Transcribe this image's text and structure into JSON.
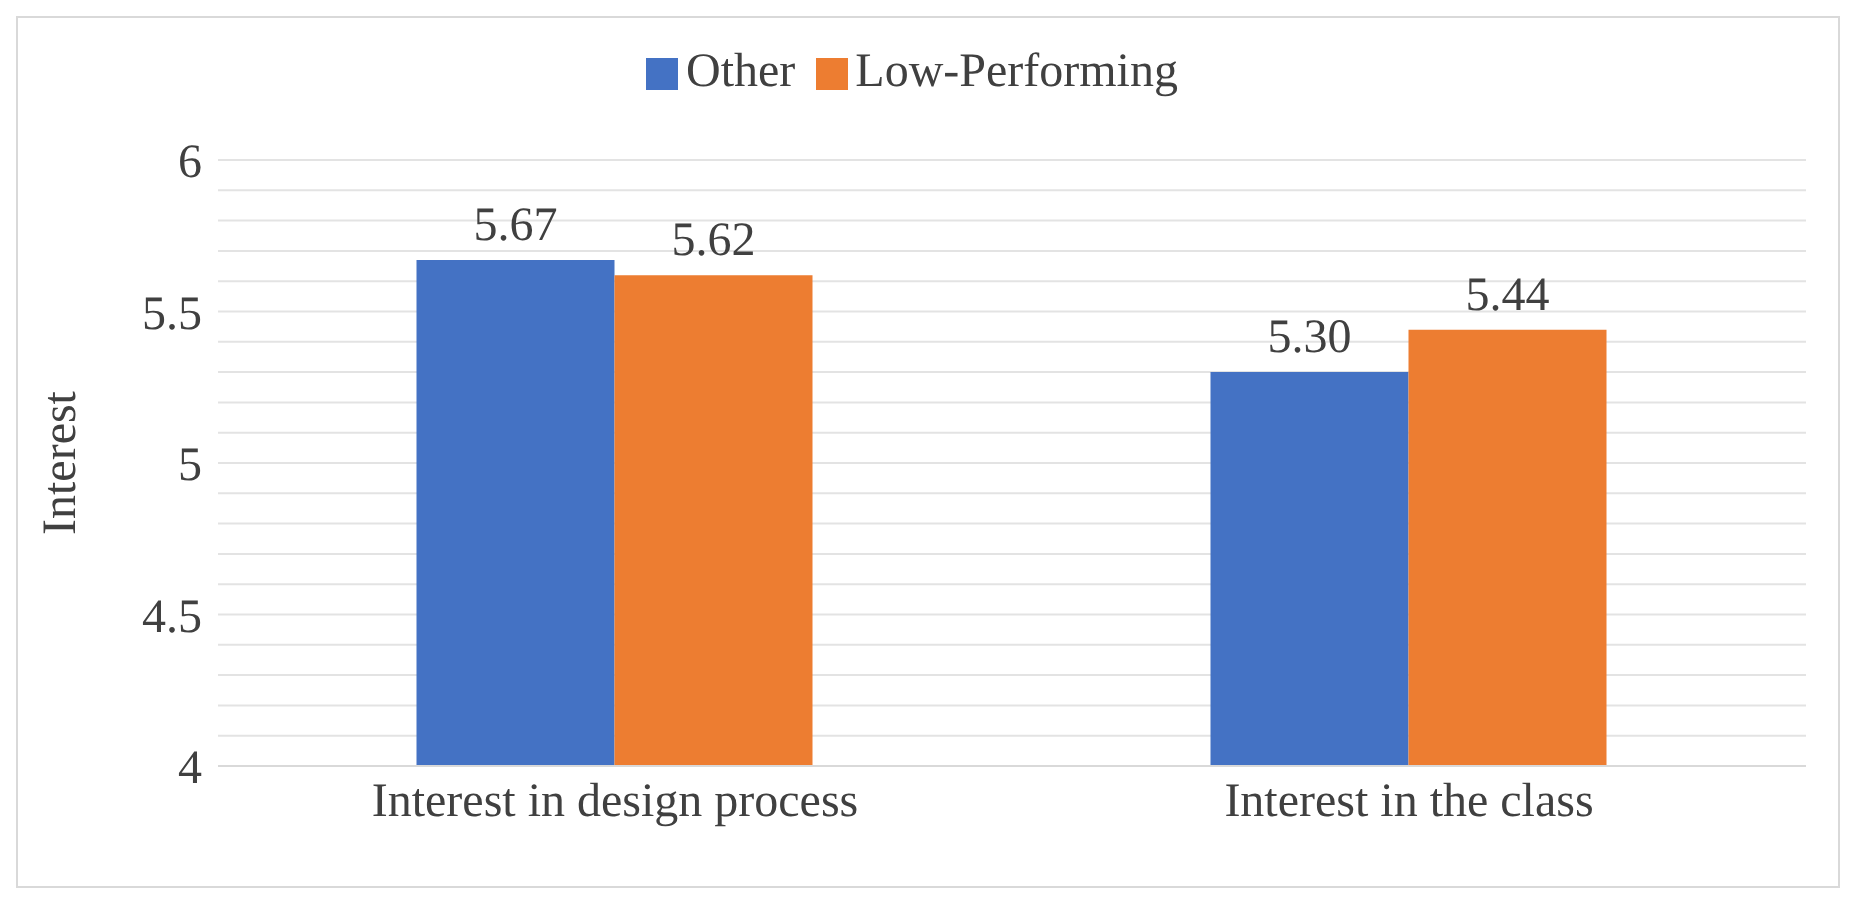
{
  "chart_data": {
    "type": "bar",
    "ylabel": "Interest",
    "categories": [
      "Interest in design process",
      "Interest in the class"
    ],
    "series": [
      {
        "name": "Other",
        "color": "#4472c4",
        "values": [
          5.67,
          5.3
        ]
      },
      {
        "name": "Low-Performing",
        "color": "#ed7d31",
        "values": [
          5.62,
          5.44
        ]
      }
    ],
    "value_labels": [
      [
        "5.67",
        "5.30"
      ],
      [
        "5.62",
        "5.44"
      ]
    ],
    "ylim": [
      4,
      6
    ],
    "yticks": [
      4,
      {
        "value": 4.1,
        "label": null
      },
      {
        "value": 4.2,
        "label": null
      },
      {
        "value": 4.3,
        "label": null
      },
      {
        "value": 4.4,
        "label": null
      },
      4.5,
      {
        "value": 4.6,
        "label": null
      },
      {
        "value": 4.7,
        "label": null
      },
      {
        "value": 4.8,
        "label": null
      },
      {
        "value": 4.9,
        "label": null
      },
      5,
      {
        "value": 5.1,
        "label": null
      },
      {
        "value": 5.2,
        "label": null
      },
      {
        "value": 5.3,
        "label": null
      },
      {
        "value": 5.4,
        "label": null
      },
      5.5,
      {
        "value": 5.6,
        "label": null
      },
      {
        "value": 5.7,
        "label": null
      },
      {
        "value": 5.8,
        "label": null
      },
      {
        "value": 5.9,
        "label": null
      },
      6
    ],
    "grid": "y",
    "legend": "top"
  }
}
